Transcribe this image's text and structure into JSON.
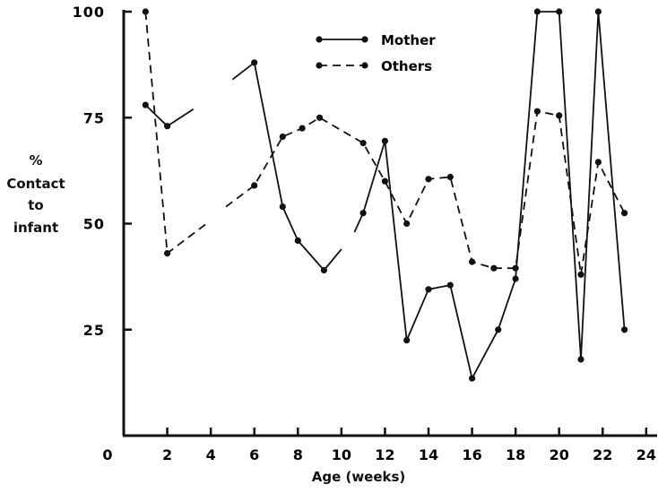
{
  "chart_data": {
    "type": "line",
    "xlabel": "Age (weeks)",
    "ylabel_lines": [
      "%",
      "Contact",
      "to",
      "infant"
    ],
    "xlim": [
      0,
      24.5
    ],
    "ylim": [
      0,
      100
    ],
    "x_ticks": [
      0,
      2,
      4,
      6,
      8,
      10,
      12,
      14,
      16,
      18,
      20,
      22,
      24
    ],
    "y_ticks": [
      25,
      50,
      75,
      100
    ],
    "grid": false,
    "legend_position": "top-center",
    "series": [
      {
        "name": "Mother",
        "style": "solid",
        "color": "#111111",
        "segments": [
          [
            [
              1,
              78
            ],
            [
              2,
              73
            ],
            [
              3.2,
              77
            ]
          ],
          [
            [
              5,
              84
            ],
            [
              6,
              88
            ],
            [
              7.3,
              54
            ],
            [
              8,
              46
            ],
            [
              9.2,
              39
            ],
            [
              10,
              44
            ]
          ],
          [
            [
              10.6,
              48
            ],
            [
              11,
              52.5
            ],
            [
              12,
              69.5
            ],
            [
              13,
              22.5
            ],
            [
              14,
              34.5
            ],
            [
              15,
              35.5
            ],
            [
              16,
              13.5
            ],
            [
              17.2,
              25
            ],
            [
              18,
              37
            ],
            [
              19,
              100
            ],
            [
              20,
              100
            ],
            [
              21,
              18
            ],
            [
              21.8,
              100
            ],
            [
              23,
              25
            ]
          ]
        ]
      },
      {
        "name": "Others",
        "style": "dashed",
        "color": "#111111",
        "segments": [
          [
            [
              1,
              100
            ],
            [
              2,
              43
            ],
            [
              3.8,
              50
            ]
          ],
          [
            [
              4.7,
              54
            ],
            [
              6,
              59
            ],
            [
              7.3,
              70.5
            ],
            [
              8.2,
              72.5
            ],
            [
              9,
              75
            ],
            [
              11,
              69
            ],
            [
              12,
              60
            ],
            [
              13,
              50
            ],
            [
              14,
              60.5
            ],
            [
              15,
              61
            ],
            [
              16,
              41
            ],
            [
              17,
              39.5
            ],
            [
              18,
              39.5
            ],
            [
              19,
              76.5
            ],
            [
              20,
              75.5
            ],
            [
              21,
              38
            ],
            [
              21.8,
              64.5
            ],
            [
              23,
              52.5
            ]
          ]
        ]
      }
    ]
  }
}
